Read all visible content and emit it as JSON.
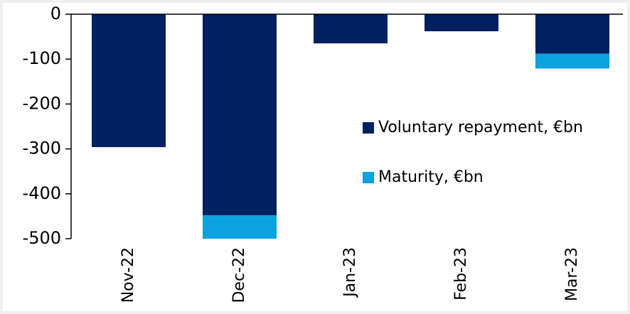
{
  "chart_data": {
    "type": "stacked_bar",
    "categories": [
      "Nov-22",
      "Dec-22",
      "Jan-23",
      "Feb-23",
      "Mar-23"
    ],
    "series": [
      {
        "name": "Voluntary repayment, €bn",
        "color": "#002060",
        "values": [
          -296,
          -448,
          -65,
          -38,
          -88
        ]
      },
      {
        "name": "Maturity, €bn",
        "color": "#0ca2e0",
        "values": [
          0,
          -52,
          0,
          0,
          -33
        ]
      }
    ],
    "ylim": [
      -500,
      0
    ],
    "yticks": [
      0,
      -100,
      -200,
      -300,
      -400,
      -500
    ],
    "grid": false
  }
}
